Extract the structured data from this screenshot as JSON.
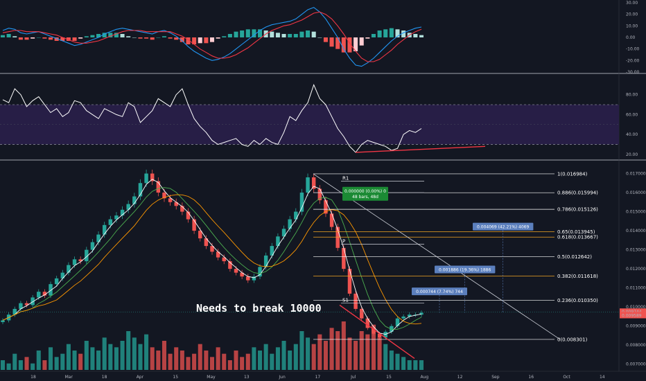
{
  "chart_data": [
    {
      "panel": "macd",
      "type": "line",
      "y_ticks": [
        "30.00",
        "20.00",
        "10.00",
        "0.00",
        "-10.00",
        "-20.00",
        "-30.00"
      ],
      "ylim": [
        -30,
        30
      ],
      "series": [
        {
          "color": "#2196f3",
          "values": [
            6,
            8,
            7,
            4,
            3,
            4,
            5,
            3,
            1,
            -1,
            -3,
            -5,
            -7,
            -6,
            -4,
            -2,
            0,
            3,
            5,
            7,
            8,
            7,
            6,
            5,
            4,
            3,
            5,
            6,
            4,
            1,
            -3,
            -8,
            -12,
            -15,
            -18,
            -20,
            -19,
            -17,
            -14,
            -10,
            -6,
            -2,
            2,
            6,
            9,
            11,
            12,
            13,
            14,
            16,
            20,
            24,
            26,
            22,
            16,
            8,
            0,
            -10,
            -18,
            -24,
            -25,
            -22,
            -18,
            -13,
            -8,
            -3,
            1,
            4,
            6,
            8,
            9
          ]
        },
        {
          "color": "#f23645",
          "values": [
            4,
            5,
            6,
            6,
            5,
            5,
            5,
            4,
            3,
            2,
            0,
            -2,
            -4,
            -5,
            -5,
            -4,
            -3,
            -1,
            1,
            3,
            5,
            6,
            6,
            6,
            5,
            5,
            5,
            5,
            5,
            3,
            1,
            -2,
            -6,
            -10,
            -13,
            -16,
            -18,
            -18,
            -17,
            -15,
            -12,
            -9,
            -5,
            -1,
            3,
            6,
            8,
            10,
            11,
            13,
            15,
            18,
            21,
            22,
            20,
            16,
            10,
            3,
            -5,
            -12,
            -18,
            -21,
            -21,
            -19,
            -15,
            -11,
            -6,
            -2,
            2,
            5,
            7
          ]
        }
      ],
      "histogram": [
        2,
        3,
        1,
        -2,
        -2,
        -1,
        0,
        -1,
        -2,
        -3,
        -3,
        -3,
        -3,
        -1,
        1,
        2,
        3,
        4,
        4,
        4,
        3,
        1,
        0,
        -1,
        -1,
        -2,
        0,
        1,
        -1,
        -2,
        -4,
        -6,
        -6,
        -5,
        -5,
        -4,
        -1,
        1,
        3,
        5,
        6,
        7,
        7,
        7,
        6,
        5,
        4,
        3,
        3,
        3,
        5,
        6,
        5,
        0,
        -4,
        -8,
        -10,
        -13,
        -13,
        -12,
        -7,
        -1,
        3,
        6,
        7,
        8,
        7,
        6,
        4,
        3,
        2
      ]
    },
    {
      "panel": "rsi",
      "type": "line",
      "y_ticks": [
        "80.00",
        "60.00",
        "40.00",
        "20.00"
      ],
      "ylim": [
        15,
        100
      ],
      "bands": [
        30,
        70
      ],
      "values": [
        75,
        72,
        86,
        80,
        68,
        74,
        78,
        70,
        62,
        66,
        58,
        62,
        74,
        72,
        64,
        60,
        56,
        66,
        63,
        60,
        58,
        72,
        68,
        52,
        58,
        64,
        76,
        72,
        68,
        80,
        86,
        70,
        56,
        48,
        42,
        34,
        30,
        32,
        34,
        36,
        30,
        28,
        34,
        30,
        36,
        32,
        30,
        42,
        58,
        54,
        64,
        72,
        90,
        76,
        70,
        58,
        46,
        38,
        28,
        22,
        30,
        34,
        32,
        30,
        28,
        24,
        26,
        40,
        44,
        42,
        46
      ]
    },
    {
      "panel": "price",
      "type": "candlestick",
      "x_ticks": [
        "18",
        "Mar",
        "18",
        "Apr",
        "15",
        "May",
        "13",
        "Jun",
        "17",
        "Jul",
        "15",
        "Aug",
        "12",
        "Sep",
        "16",
        "Oct",
        "14"
      ],
      "y_ticks": [
        "0.017000",
        "0.016000",
        "0.015000",
        "0.014000",
        "0.013000",
        "0.012000",
        "0.011000",
        "0.010000",
        "0.009000",
        "0.008000",
        "0.007000"
      ],
      "ylim": [
        0.0067,
        0.0176
      ],
      "close_path": [
        0.0093,
        0.0096,
        0.0099,
        0.0102,
        0.0101,
        0.0105,
        0.0108,
        0.0106,
        0.0112,
        0.0115,
        0.0118,
        0.0122,
        0.0125,
        0.0124,
        0.013,
        0.0134,
        0.0138,
        0.0143,
        0.0146,
        0.0148,
        0.0151,
        0.0154,
        0.0158,
        0.0165,
        0.017,
        0.0166,
        0.016,
        0.0157,
        0.0155,
        0.0153,
        0.015,
        0.0146,
        0.014,
        0.0136,
        0.0132,
        0.0129,
        0.0126,
        0.0124,
        0.012,
        0.0118,
        0.0116,
        0.0114,
        0.0116,
        0.0121,
        0.0127,
        0.0132,
        0.0137,
        0.0141,
        0.0146,
        0.015,
        0.016,
        0.0168,
        0.0162,
        0.0156,
        0.0149,
        0.0142,
        0.0131,
        0.012,
        0.0107,
        0.0099,
        0.0094,
        0.0089,
        0.0086,
        0.0084,
        0.0087,
        0.009,
        0.0094,
        0.0095,
        0.0096,
        0.0096,
        0.0097
      ],
      "last_price": "0.009744",
      "last_price_2": "0.009589",
      "fib_levels": [
        {
          "label": "1(0.016984)",
          "value": 0.016984,
          "color": "#ffffff"
        },
        {
          "label": "0.886(0.015994)",
          "value": 0.015994,
          "color": "#ffffff"
        },
        {
          "label": "0.786(0.015126)",
          "value": 0.015126,
          "color": "#ffffff"
        },
        {
          "label": "0.65(0.013945)",
          "value": 0.013945,
          "color": "#f5a623"
        },
        {
          "label": "0.618(0.013667)",
          "value": 0.013667,
          "color": "#f5a623"
        },
        {
          "label": "0.5(0.012642)",
          "value": 0.012642,
          "color": "#ffffff"
        },
        {
          "label": "0.382(0.011618)",
          "value": 0.011618,
          "color": "#f5a623"
        },
        {
          "label": "0.236(0.010350)",
          "value": 0.01035,
          "color": "#ffffff"
        },
        {
          "label": "0(0.008301)",
          "value": 0.008301,
          "color": "#ffffff"
        }
      ],
      "pivots": [
        {
          "label": "R1",
          "value": 0.0166
        },
        {
          "label": "P",
          "value": 0.0133
        },
        {
          "label": "S1",
          "value": 0.0102
        }
      ],
      "target_boxes": [
        {
          "text": "0.004069 (42.21%) 4069",
          "value": 0.0142
        },
        {
          "text": "0.001886 (19.36%) 1886",
          "value": 0.01195
        },
        {
          "text": "0.000744 (7.74%) 744",
          "value": 0.0108
        }
      ],
      "measure_box": {
        "line1": "0.000000 (0.00%) 0",
        "line2": "48 bars, 48d"
      },
      "annotation": "Needs to break 10000",
      "volume": [
        3,
        2,
        5,
        3,
        4,
        2,
        6,
        3,
        7,
        4,
        5,
        8,
        6,
        5,
        9,
        7,
        6,
        10,
        8,
        7,
        9,
        12,
        10,
        8,
        11,
        7,
        6,
        9,
        5,
        7,
        6,
        4,
        5,
        8,
        6,
        4,
        7,
        5,
        3,
        6,
        4,
        5,
        7,
        6,
        8,
        5,
        7,
        9,
        6,
        8,
        12,
        10,
        8,
        11,
        9,
        13,
        12,
        15,
        10,
        9,
        12,
        11,
        14,
        10,
        8,
        6,
        5,
        4,
        3,
        3,
        3
      ]
    }
  ]
}
